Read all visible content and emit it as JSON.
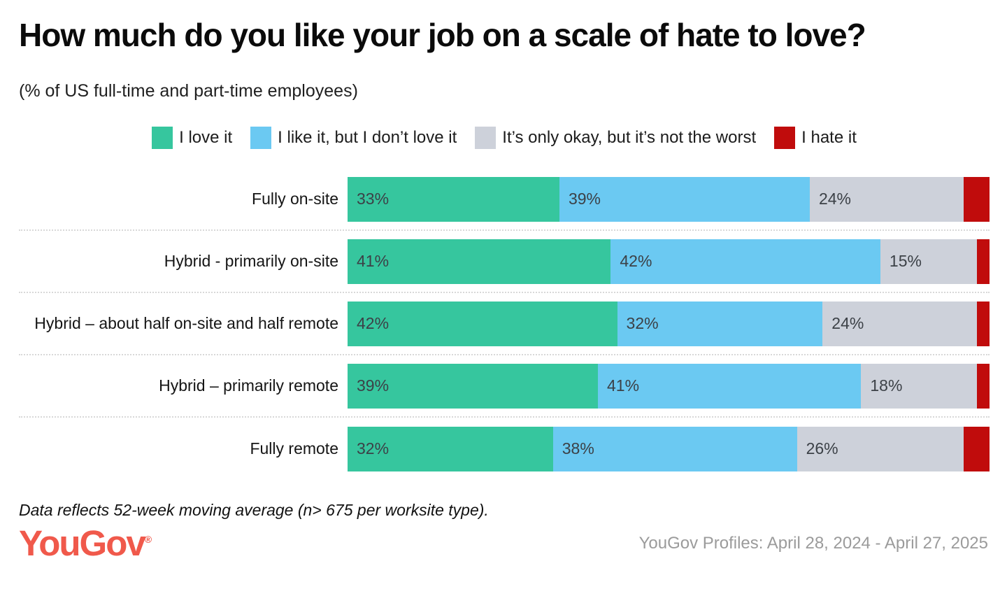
{
  "header": {
    "title": "How much do you like your job on a scale of hate to love?",
    "subtitle": "(% of US full-time and part-time employees)"
  },
  "chart_data": {
    "type": "bar",
    "orientation": "horizontal",
    "stacked": true,
    "unit": "%",
    "xlim": [
      0,
      100
    ],
    "value_labels": "inside-left",
    "legend_position": "top-center",
    "categories": [
      "Fully on-site",
      "Hybrid - primarily on-site",
      "Hybrid – about half on-site and half remote",
      "Hybrid – primarily remote",
      "Fully remote"
    ],
    "series": [
      {
        "name": "I love it",
        "color": "#36c69e",
        "values": [
          33,
          41,
          42,
          39,
          32
        ],
        "show_label": true
      },
      {
        "name": "I like it, but I don’t love it",
        "color": "#6bc9f2",
        "values": [
          39,
          42,
          32,
          41,
          38
        ],
        "show_label": true
      },
      {
        "name": "It’s only okay, but it’s not the worst",
        "color": "#cdd1da",
        "values": [
          24,
          15,
          24,
          18,
          26
        ],
        "show_label": true
      },
      {
        "name": "I hate it",
        "color": "#c00c0c",
        "values": [
          4,
          2,
          2,
          2,
          4
        ],
        "show_label": false
      }
    ]
  },
  "footer": {
    "note": "Data reflects 52-week moving average (n> 675 per worksite type).",
    "logo": "YouGov",
    "logo_registered": "®",
    "source": "YouGov Profiles: April 28, 2024 - April 27, 2025"
  }
}
